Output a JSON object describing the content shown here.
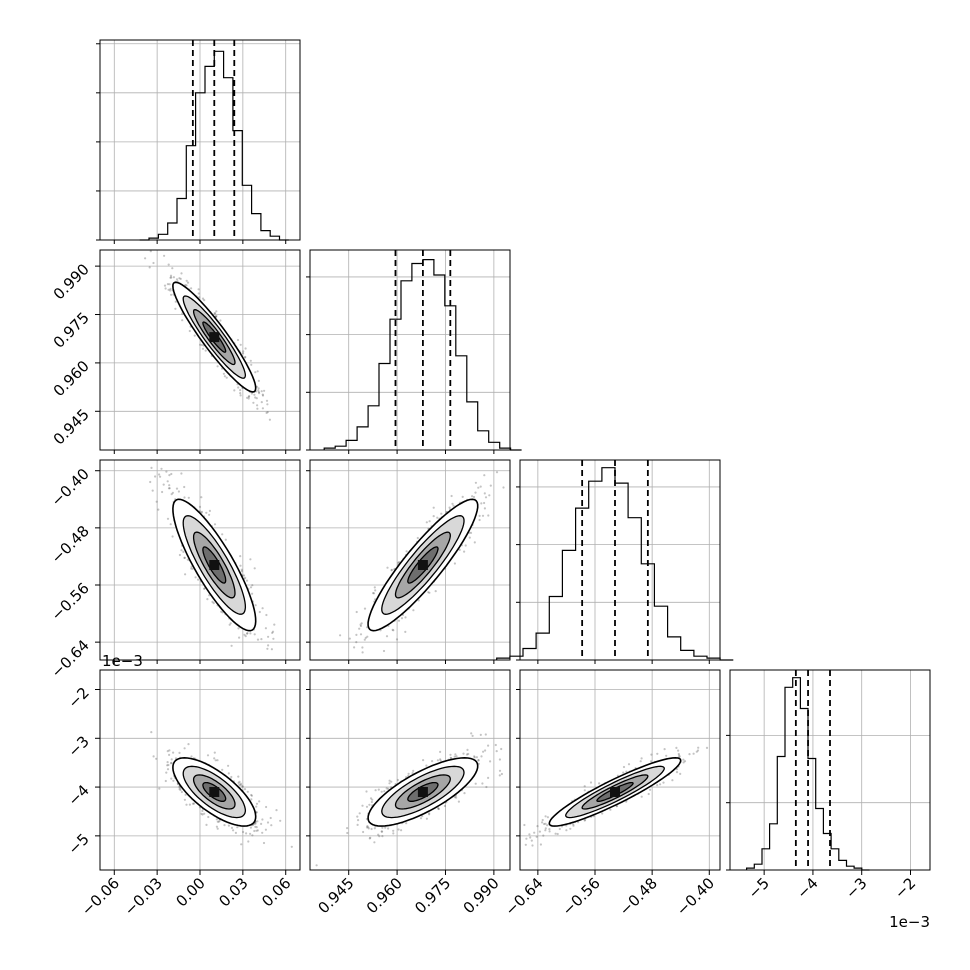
{
  "chart_data": {
    "type": "corner",
    "parameters": [
      {
        "range": [
          -0.07,
          0.07
        ],
        "ticks": [
          -0.06,
          -0.03,
          0.0,
          0.03,
          0.06
        ],
        "tick_labels": [
          "−0.06",
          "−0.03",
          "0.00",
          "0.03",
          "0.06"
        ],
        "quantiles": [
          -0.005,
          0.01,
          0.024
        ],
        "offset_text": ""
      },
      {
        "range": [
          0.933,
          0.995
        ],
        "ticks": [
          0.945,
          0.96,
          0.975,
          0.99
        ],
        "tick_labels": [
          "0.945",
          "0.960",
          "0.975",
          "0.990"
        ],
        "quantiles": [
          0.9595,
          0.968,
          0.9765
        ],
        "offset_text": ""
      },
      {
        "range": [
          -0.665,
          -0.385
        ],
        "ticks": [
          -0.64,
          -0.56,
          -0.48,
          -0.4
        ],
        "tick_labels": [
          "−0.64",
          "−0.56",
          "−0.48",
          "−0.40"
        ],
        "quantiles": [
          -0.578,
          -0.532,
          -0.486
        ],
        "offset_text": ""
      },
      {
        "range": [
          -5.7,
          -1.6
        ],
        "ticks": [
          -5,
          -4,
          -3,
          -2
        ],
        "tick_labels": [
          "−5",
          "−4",
          "−3",
          "−2"
        ],
        "quantiles": [
          -4.35,
          -4.1,
          -3.65
        ],
        "offset_text": "1e−3"
      }
    ],
    "histograms": [
      {
        "counts": [
          0,
          1,
          3,
          9,
          22,
          50,
          78,
          92,
          100,
          86,
          58,
          29,
          14,
          5,
          2,
          0
        ],
        "ylim": [
          0,
          106
        ],
        "yticks": [
          0,
          26,
          52,
          78,
          104
        ]
      },
      {
        "counts": [
          1,
          2,
          5,
          12,
          23,
          45,
          68,
          88,
          97,
          99,
          91,
          75,
          49,
          25,
          10,
          4,
          1,
          0
        ],
        "ylim": [
          0,
          104
        ],
        "yticks": [
          0,
          30,
          60,
          90
        ]
      },
      {
        "counts": [
          1,
          2,
          6,
          14,
          33,
          57,
          79,
          93,
          100,
          92,
          74,
          50,
          28,
          12,
          5,
          2,
          1,
          0
        ],
        "ylim": [
          0,
          104
        ],
        "yticks": [
          0,
          30,
          60,
          90
        ]
      },
      {
        "counts": [
          1,
          3,
          11,
          24,
          59,
          95,
          100,
          84,
          58,
          32,
          19,
          11,
          5,
          2,
          1,
          0
        ],
        "ylim": [
          0,
          104
        ],
        "yticks": [
          0,
          35,
          70
        ]
      }
    ],
    "pair_offset_label": "1e−3",
    "quantile_levels": [
      0.16,
      0.5,
      0.84
    ],
    "colors": {
      "line": "#000000",
      "scatter": "#555555",
      "grid": "#b0b0b0"
    }
  }
}
